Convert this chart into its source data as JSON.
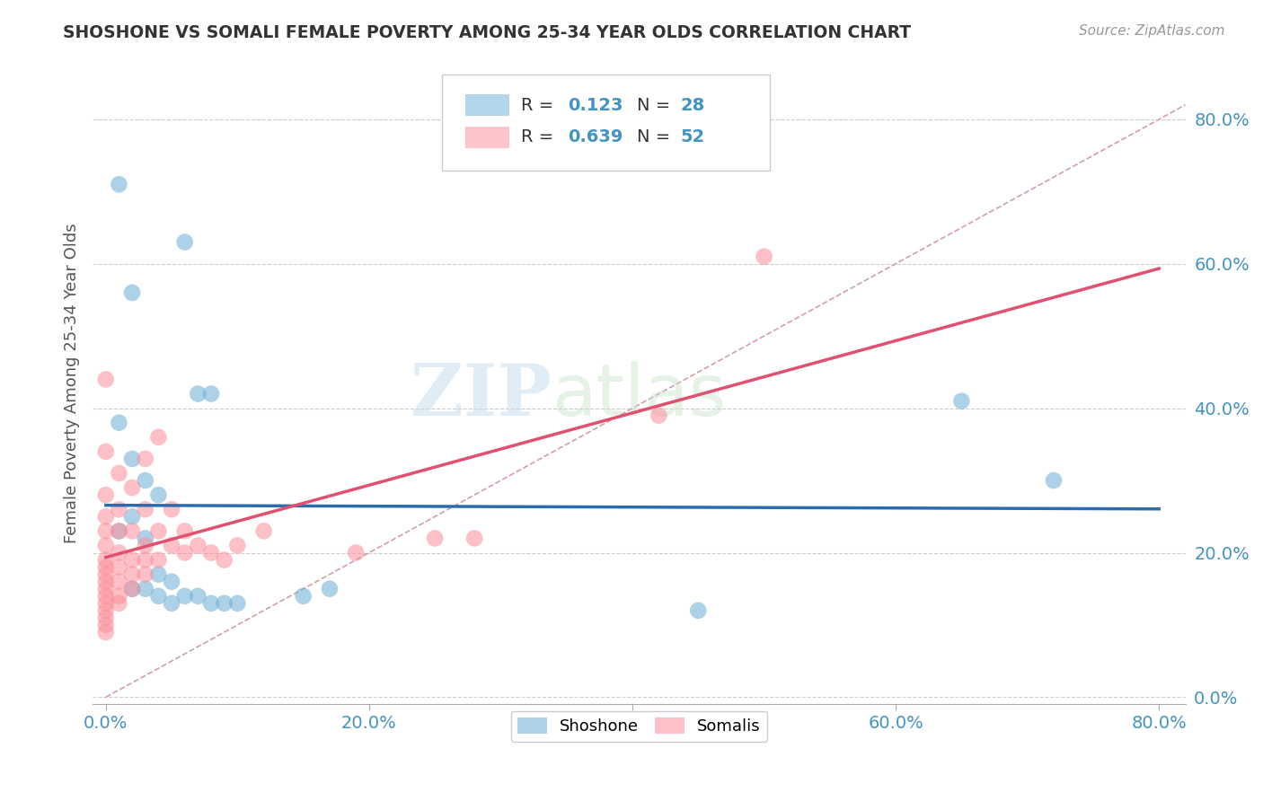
{
  "title": "SHOSHONE VS SOMALI FEMALE POVERTY AMONG 25-34 YEAR OLDS CORRELATION CHART",
  "source": "Source: ZipAtlas.com",
  "ylabel": "Female Poverty Among 25-34 Year Olds",
  "xlabel": "",
  "xlim": [
    -0.01,
    0.82
  ],
  "ylim": [
    -0.01,
    0.88
  ],
  "xticks": [
    0.0,
    0.2,
    0.4,
    0.6,
    0.8
  ],
  "yticks": [
    0.0,
    0.2,
    0.4,
    0.6,
    0.8
  ],
  "xtick_labels": [
    "0.0%",
    "20.0%",
    "40.0%",
    "60.0%",
    "80.0%"
  ],
  "ytick_labels": [
    "0.0%",
    "20.0%",
    "40.0%",
    "60.0%",
    "80.0%"
  ],
  "shoshone_color": "#6baed6",
  "somali_color": "#fc8d99",
  "shoshone_R": 0.123,
  "shoshone_N": 28,
  "somali_R": 0.639,
  "somali_N": 52,
  "tick_color": "#4393c3",
  "watermark_zip": "ZIP",
  "watermark_atlas": "atlas",
  "background_color": "#ffffff",
  "grid_color": "#cccccc",
  "diagonal_color": "#d0a0a8",
  "shoshone_line_color": "#2b6cb0",
  "somali_line_color": "#e05070",
  "shoshone_points": [
    [
      0.01,
      0.71
    ],
    [
      0.02,
      0.56
    ],
    [
      0.06,
      0.63
    ],
    [
      0.07,
      0.42
    ],
    [
      0.08,
      0.42
    ],
    [
      0.01,
      0.38
    ],
    [
      0.02,
      0.33
    ],
    [
      0.03,
      0.3
    ],
    [
      0.04,
      0.28
    ],
    [
      0.02,
      0.25
    ],
    [
      0.01,
      0.23
    ],
    [
      0.03,
      0.22
    ],
    [
      0.04,
      0.17
    ],
    [
      0.05,
      0.16
    ],
    [
      0.02,
      0.15
    ],
    [
      0.03,
      0.15
    ],
    [
      0.06,
      0.14
    ],
    [
      0.04,
      0.14
    ],
    [
      0.07,
      0.14
    ],
    [
      0.05,
      0.13
    ],
    [
      0.08,
      0.13
    ],
    [
      0.09,
      0.13
    ],
    [
      0.1,
      0.13
    ],
    [
      0.15,
      0.14
    ],
    [
      0.17,
      0.15
    ],
    [
      0.45,
      0.12
    ],
    [
      0.65,
      0.41
    ],
    [
      0.72,
      0.3
    ]
  ],
  "somali_points": [
    [
      0.0,
      0.44
    ],
    [
      0.0,
      0.34
    ],
    [
      0.0,
      0.28
    ],
    [
      0.0,
      0.25
    ],
    [
      0.0,
      0.23
    ],
    [
      0.0,
      0.21
    ],
    [
      0.0,
      0.19
    ],
    [
      0.0,
      0.18
    ],
    [
      0.0,
      0.17
    ],
    [
      0.0,
      0.16
    ],
    [
      0.0,
      0.15
    ],
    [
      0.0,
      0.14
    ],
    [
      0.0,
      0.13
    ],
    [
      0.0,
      0.12
    ],
    [
      0.0,
      0.11
    ],
    [
      0.0,
      0.1
    ],
    [
      0.0,
      0.09
    ],
    [
      0.01,
      0.31
    ],
    [
      0.01,
      0.26
    ],
    [
      0.01,
      0.23
    ],
    [
      0.01,
      0.2
    ],
    [
      0.01,
      0.18
    ],
    [
      0.01,
      0.16
    ],
    [
      0.01,
      0.14
    ],
    [
      0.01,
      0.13
    ],
    [
      0.02,
      0.29
    ],
    [
      0.02,
      0.23
    ],
    [
      0.02,
      0.19
    ],
    [
      0.02,
      0.17
    ],
    [
      0.02,
      0.15
    ],
    [
      0.03,
      0.33
    ],
    [
      0.03,
      0.26
    ],
    [
      0.03,
      0.21
    ],
    [
      0.03,
      0.19
    ],
    [
      0.03,
      0.17
    ],
    [
      0.04,
      0.36
    ],
    [
      0.04,
      0.23
    ],
    [
      0.04,
      0.19
    ],
    [
      0.05,
      0.26
    ],
    [
      0.05,
      0.21
    ],
    [
      0.06,
      0.23
    ],
    [
      0.06,
      0.2
    ],
    [
      0.07,
      0.21
    ],
    [
      0.08,
      0.2
    ],
    [
      0.09,
      0.19
    ],
    [
      0.1,
      0.21
    ],
    [
      0.12,
      0.23
    ],
    [
      0.19,
      0.2
    ],
    [
      0.25,
      0.22
    ],
    [
      0.28,
      0.22
    ],
    [
      0.42,
      0.39
    ],
    [
      0.5,
      0.61
    ]
  ]
}
